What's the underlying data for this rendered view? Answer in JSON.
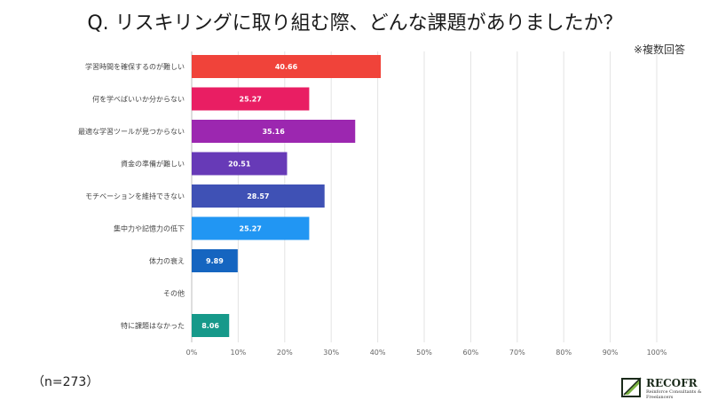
{
  "header": {
    "title": "Q. リスキリングに取り組む際、どんな課題がありましたか？",
    "note": "※複数回答"
  },
  "footer": {
    "sample_size": "（n=273）"
  },
  "logo": {
    "name": "RECOFR",
    "tagline": "Reinforce Consultants & Freelancers"
  },
  "chart_data": {
    "type": "bar",
    "orientation": "horizontal",
    "title": "Q. リスキリングに取り組む際、どんな課題がありましたか？",
    "xlabel": "",
    "ylabel": "",
    "xlim": [
      0,
      100
    ],
    "grid": true,
    "categories": [
      "学習時間を確保するのが難しい",
      "何を学べばいいか分からない",
      "最適な学習ツールが見つからない",
      "資金の準備が難しい",
      "モチベーションを維持できない",
      "集中力や記憶力の低下",
      "体力の衰え",
      "その他",
      "特に課題はなかった"
    ],
    "values": [
      40.66,
      25.27,
      35.16,
      20.51,
      28.57,
      25.27,
      9.89,
      0,
      8.06
    ],
    "value_labels": [
      "40.66",
      "25.27",
      "35.16",
      "20.51",
      "28.57",
      "25.27",
      "9.89",
      "",
      "8.06"
    ],
    "colors": [
      "#f0433a",
      "#e91e63",
      "#9c27b0",
      "#673ab7",
      "#3f51b5",
      "#2196f3",
      "#1565c0",
      "#cccccc",
      "#16998a"
    ],
    "x_ticks": [
      "0%",
      "10%",
      "20%",
      "30%",
      "40%",
      "50%",
      "60%",
      "70%",
      "80%",
      "90%",
      "100%"
    ]
  }
}
